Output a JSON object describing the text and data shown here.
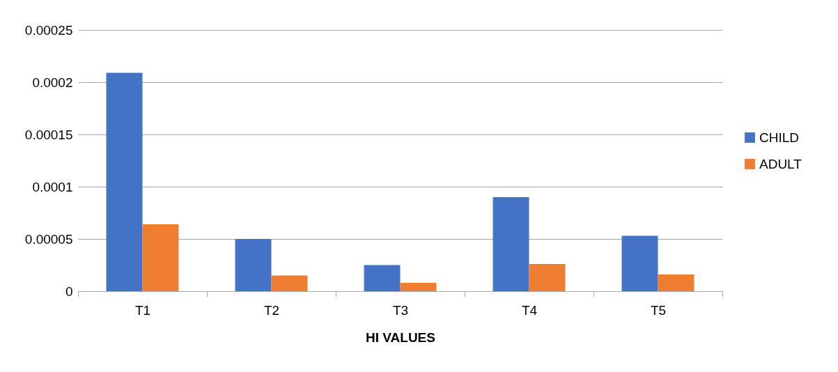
{
  "chart_data": {
    "type": "bar",
    "xlabel": "HI VALUES",
    "categories": [
      "T1",
      "T2",
      "T3",
      "T4",
      "T5"
    ],
    "series": [
      {
        "name": "CHILD",
        "color": "#4472c4",
        "values": [
          0.000209,
          5e-05,
          2.5e-05,
          9e-05,
          5.3e-05
        ]
      },
      {
        "name": "ADULT",
        "color": "#ed7d31",
        "values": [
          6.4e-05,
          1.5e-05,
          8e-06,
          2.6e-05,
          1.6e-05
        ]
      }
    ],
    "ylim": [
      0,
      0.00025
    ],
    "yticks": [
      0,
      {
        "value": 5e-05,
        "label": "0.00005"
      },
      0.0001,
      0.00015,
      0.0002,
      0.00025
    ],
    "grid": "y",
    "legend": "right"
  }
}
